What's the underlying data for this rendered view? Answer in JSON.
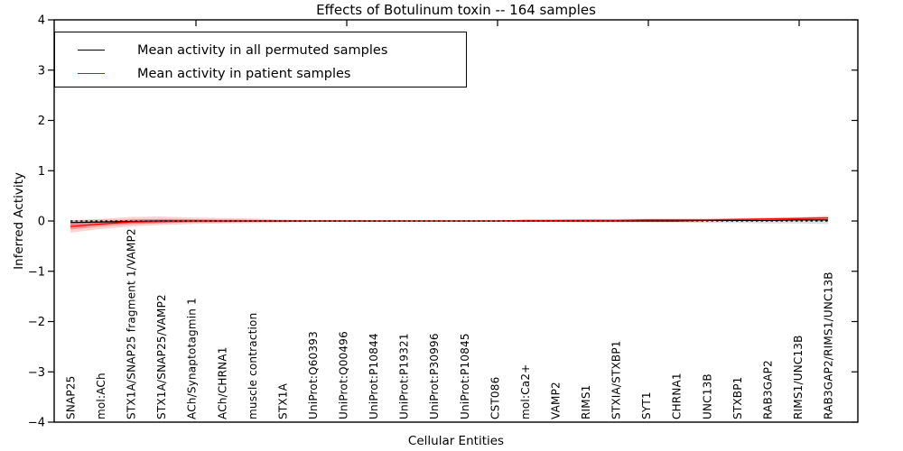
{
  "chart_data": {
    "type": "line",
    "title": "Effects of Botulinum toxin -- 164 samples",
    "xlabel": "Cellular Entities",
    "ylabel": "Inferred Activity",
    "ylim": [
      -4,
      4
    ],
    "yticks": [
      4,
      3,
      2,
      1,
      0,
      -1,
      -2,
      -3,
      -4
    ],
    "grid": false,
    "legend_position": "upper left",
    "zero_reference_line": {
      "style": "dotted",
      "color": "#000000",
      "y": 0
    },
    "categories": [
      "SNAP25",
      "mol:ACh",
      "STX1A/SNAP25 fragment 1/VAMP2",
      "STX1A/SNAP25/VAMP2",
      "ACh/Synaptotagmin 1",
      "ACh/CHRNA1",
      "muscle contraction",
      "STX1A",
      "UniProt:Q60393",
      "UniProt:Q00496",
      "UniProt:P10844",
      "UniProt:P19321",
      "UniProt:P30996",
      "UniProt:P10845",
      "CST086",
      "mol:Ca2+",
      "VAMP2",
      "RIMS1",
      "STXIA/STXBP1",
      "SYT1",
      "CHRNA1",
      "UNC13B",
      "STXBP1",
      "RAB3GAP2",
      "RIMS1/UNC13B",
      "RAB3GAP2/RIMS1/UNC13B"
    ],
    "series": [
      {
        "name": "Mean activity in all permuted samples",
        "color": "#000000",
        "band_color": "rgba(0,0,0,0.13)",
        "values": [
          -0.03,
          -0.02,
          -0.01,
          0,
          0,
          0,
          0,
          0,
          0,
          0,
          0,
          0,
          0,
          0,
          0,
          0,
          0,
          0,
          0,
          0,
          0,
          0.01,
          0.01,
          0.01,
          0.02,
          0.02
        ],
        "band_upper": [
          0.02,
          0.03,
          0.03,
          0.03,
          0.03,
          0.02,
          0.02,
          0.02,
          0.02,
          0.02,
          0.02,
          0.02,
          0.02,
          0.02,
          0.02,
          0.02,
          0.02,
          0.03,
          0.03,
          0.03,
          0.03,
          0.03,
          0.04,
          0.04,
          0.05,
          0.05
        ],
        "band_lower": [
          -0.08,
          -0.07,
          -0.05,
          -0.04,
          -0.03,
          -0.03,
          -0.02,
          -0.02,
          -0.02,
          -0.02,
          -0.02,
          -0.02,
          -0.02,
          -0.02,
          -0.02,
          -0.02,
          -0.02,
          -0.03,
          -0.03,
          -0.03,
          -0.03,
          -0.04,
          -0.04,
          -0.05,
          -0.05,
          -0.06
        ]
      },
      {
        "name": "Mean activity in patient samples",
        "color": "#ff0000",
        "band_color": "rgba(255,0,0,0.18)",
        "values": [
          -0.11,
          -0.06,
          -0.02,
          -0.01,
          0,
          0,
          0,
          0,
          0,
          0,
          0,
          0,
          0,
          0,
          0,
          0.01,
          0.01,
          0.01,
          0.01,
          0.02,
          0.02,
          0.02,
          0.03,
          0.04,
          0.05,
          0.06
        ],
        "band_upper": [
          0.01,
          0.04,
          0.08,
          0.09,
          0.07,
          0.06,
          0.05,
          0.03,
          0.02,
          0.02,
          0.01,
          0.01,
          0.01,
          0.01,
          0.01,
          0.02,
          0.03,
          0.04,
          0.04,
          0.05,
          0.05,
          0.05,
          0.06,
          0.07,
          0.08,
          0.1
        ],
        "band_lower": [
          -0.23,
          -0.16,
          -0.11,
          -0.08,
          -0.06,
          -0.05,
          -0.04,
          -0.03,
          -0.02,
          -0.02,
          -0.02,
          -0.01,
          -0.01,
          -0.01,
          -0.01,
          -0.01,
          -0.01,
          -0.01,
          -0.01,
          -0.01,
          -0.01,
          0,
          0,
          0,
          0.01,
          0.02
        ]
      }
    ]
  },
  "legend": {
    "items": [
      {
        "label": "Mean activity in all permuted samples",
        "color": "#000000"
      },
      {
        "label": "Mean activity in patient samples",
        "color": "#ff0000"
      }
    ]
  }
}
